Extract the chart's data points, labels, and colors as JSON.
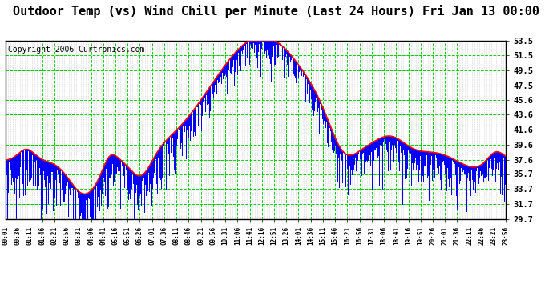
{
  "title": "Outdoor Temp (vs) Wind Chill per Minute (Last 24 Hours) Fri Jan 13 00:00",
  "copyright": "Copyright 2006 Curtronics.com",
  "y_ticks": [
    29.7,
    31.7,
    33.7,
    35.7,
    37.6,
    39.6,
    41.6,
    43.6,
    45.6,
    47.5,
    49.5,
    51.5,
    53.5
  ],
  "ylim": [
    29.7,
    53.5
  ],
  "x_labels": [
    "00:01",
    "00:36",
    "01:11",
    "01:46",
    "02:21",
    "02:56",
    "03:31",
    "04:06",
    "04:41",
    "05:16",
    "05:51",
    "06:26",
    "07:01",
    "07:36",
    "08:11",
    "08:46",
    "09:21",
    "09:56",
    "10:31",
    "11:06",
    "11:41",
    "12:16",
    "12:51",
    "13:26",
    "14:01",
    "14:36",
    "15:11",
    "15:46",
    "16:21",
    "16:56",
    "17:31",
    "18:06",
    "18:41",
    "19:16",
    "19:51",
    "20:26",
    "21:01",
    "21:36",
    "22:11",
    "22:46",
    "23:21",
    "23:56"
  ],
  "plot_bg_color": "#ffffff",
  "outer_bg_color": "#ffffff",
  "bar_color": "#0000ff",
  "line_color": "#ff0000",
  "grid_color": "#00cc00",
  "grid_minor_color": "#c0c0c0",
  "title_fontsize": 11,
  "copyright_fontsize": 7
}
